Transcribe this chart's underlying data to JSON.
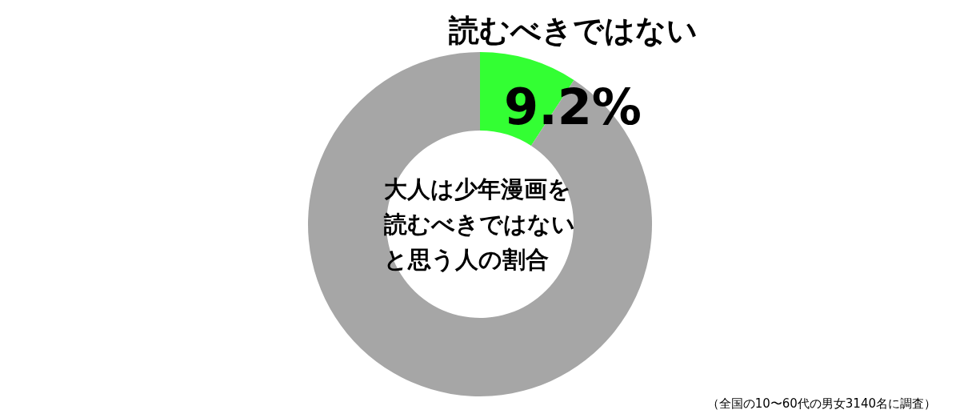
{
  "chart_data": {
    "type": "donut",
    "title": "大人は少年漫画を読むべきではないと思う人の割合",
    "categories": [
      "読むべきではない",
      null
    ],
    "values": [
      9.2,
      90.8
    ],
    "colors": [
      "#33ff33",
      "#a6a6a6"
    ],
    "value_labels": [
      "9.2%",
      null
    ],
    "annotations": [
      "（全国の10〜60代の男女3140名に調査）"
    ]
  }
}
